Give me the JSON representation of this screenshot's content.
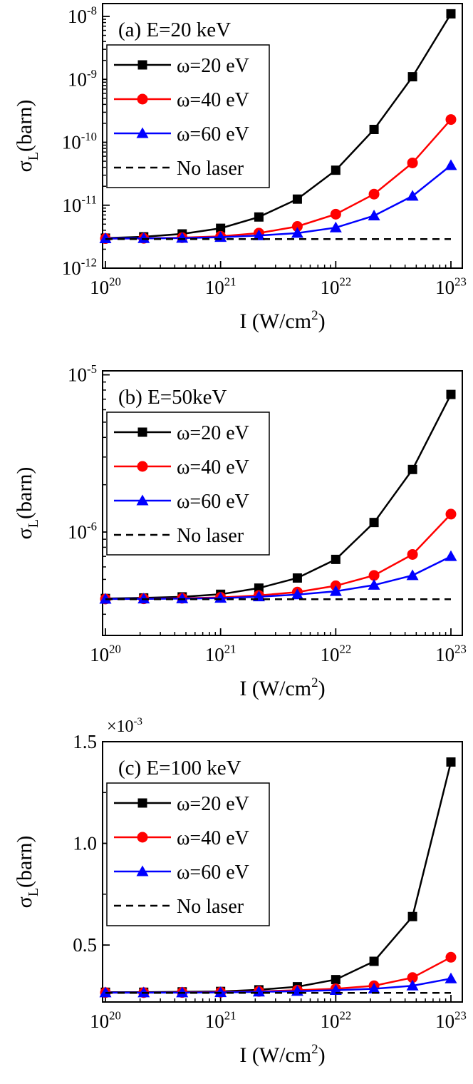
{
  "chart_data": [
    {
      "type": "line",
      "title": "(a) E=20 keV",
      "xlabel": "I (W/cm",
      "xlabel_sup": "2",
      "xlabel_end": ")",
      "ylabel": "σ",
      "ylabel_sub": "L",
      "ylabel_end": "(barn)",
      "xscale": "log",
      "yscale": "log",
      "xlim": [
        1e+20,
        1e+23
      ],
      "ylim": [
        1e-12,
        1.6e-08
      ],
      "x_ticks": [
        {
          "value": 1e+20,
          "base": "10",
          "exp": "20"
        },
        {
          "value": 1e+21,
          "base": "10",
          "exp": "21"
        },
        {
          "value": 1e+22,
          "base": "10",
          "exp": "22"
        },
        {
          "value": 1e+23,
          "base": "10",
          "exp": "23"
        }
      ],
      "y_ticks": [
        {
          "value": 1e-12,
          "base": "10",
          "exp": "-12"
        },
        {
          "value": 1e-11,
          "base": "10",
          "exp": "-11"
        },
        {
          "value": 1e-10,
          "base": "10",
          "exp": "-10"
        },
        {
          "value": 1e-09,
          "base": "10",
          "exp": "-9"
        },
        {
          "value": 1e-08,
          "base": "10",
          "exp": "-8"
        }
      ],
      "x": [
        1e+20,
        2.15e+20,
        4.64e+20,
        1e+21,
        2.15e+21,
        4.64e+21,
        1e+22,
        2.15e+22,
        4.64e+22,
        1e+23
      ],
      "series": [
        {
          "name": "ω=20 eV",
          "color": "#000000",
          "marker": "square",
          "values": [
            3e-12,
            3.15e-12,
            3.5e-12,
            4.3e-12,
            6.5e-12,
            1.25e-11,
            3.6e-11,
            1.6e-10,
            1.1e-09,
            1.1e-08
          ]
        },
        {
          "name": "ω=40 eV",
          "color": "#ff0000",
          "marker": "circle",
          "values": [
            2.95e-12,
            2.98e-12,
            3.05e-12,
            3.2e-12,
            3.6e-12,
            4.6e-12,
            7.2e-12,
            1.5e-11,
            4.7e-11,
            2.3e-10
          ]
        },
        {
          "name": "ω=60 eV",
          "color": "#0000ff",
          "marker": "triangle",
          "values": [
            2.95e-12,
            2.97e-12,
            3e-12,
            3.1e-12,
            3.3e-12,
            3.6e-12,
            4.4e-12,
            6.8e-12,
            1.4e-11,
            4.3e-11
          ]
        },
        {
          "name": "No laser",
          "color": "#000000",
          "marker": "none",
          "dash": true,
          "values": [
            2.9e-12,
            2.9e-12,
            2.9e-12,
            2.9e-12,
            2.9e-12,
            2.9e-12,
            2.9e-12,
            2.9e-12,
            2.9e-12,
            2.9e-12
          ]
        }
      ],
      "legend": "upper-left"
    },
    {
      "type": "line",
      "title": "(b) E=50keV",
      "xlabel": "I (W/cm",
      "xlabel_sup": "2",
      "xlabel_end": ")",
      "ylabel": "σ",
      "ylabel_sub": "L",
      "ylabel_end": "(barn)",
      "xscale": "log",
      "yscale": "log",
      "xlim": [
        1e+20,
        1e+23
      ],
      "ylim": [
        2.2e-07,
        1.06e-05
      ],
      "x_ticks": [
        {
          "value": 1e+20,
          "base": "10",
          "exp": "20"
        },
        {
          "value": 1e+21,
          "base": "10",
          "exp": "21"
        },
        {
          "value": 1e+22,
          "base": "10",
          "exp": "22"
        },
        {
          "value": 1e+23,
          "base": "10",
          "exp": "23"
        }
      ],
      "y_ticks": [
        {
          "value": 1e-06,
          "base": "10",
          "exp": "-6"
        },
        {
          "value": 1e-05,
          "base": "10",
          "exp": "-5"
        }
      ],
      "x": [
        1e+20,
        2.15e+20,
        4.64e+20,
        1e+21,
        2.15e+21,
        4.64e+21,
        1e+22,
        2.15e+22,
        4.64e+22,
        1e+23
      ],
      "series": [
        {
          "name": "ω=20 eV",
          "color": "#000000",
          "marker": "square",
          "values": [
            3.78e-07,
            3.81e-07,
            3.87e-07,
            4.02e-07,
            4.4e-07,
            5.1e-07,
            6.7e-07,
            1.15e-06,
            2.5e-06,
            7.5e-06
          ]
        },
        {
          "name": "ω=40 eV",
          "color": "#ff0000",
          "marker": "circle",
          "values": [
            3.75e-07,
            3.76e-07,
            3.79e-07,
            3.84e-07,
            3.95e-07,
            4.15e-07,
            4.55e-07,
            5.3e-07,
            7.2e-07,
            1.3e-06
          ]
        },
        {
          "name": "ω=60 eV",
          "color": "#0000ff",
          "marker": "triangle",
          "values": [
            3.75e-07,
            3.76e-07,
            3.77e-07,
            3.8e-07,
            3.88e-07,
            4e-07,
            4.2e-07,
            4.6e-07,
            5.3e-07,
            7e-07
          ]
        },
        {
          "name": "No laser",
          "color": "#000000",
          "marker": "none",
          "dash": true,
          "values": [
            3.74e-07,
            3.74e-07,
            3.74e-07,
            3.74e-07,
            3.74e-07,
            3.74e-07,
            3.74e-07,
            3.74e-07,
            3.74e-07,
            3.74e-07
          ]
        }
      ],
      "legend": "upper-left"
    },
    {
      "type": "line",
      "title": "(c) E=100 keV",
      "multiplier": "×10",
      "multiplier_exp": "-3",
      "xlabel": "I (W/cm",
      "xlabel_sup": "2",
      "xlabel_end": ")",
      "ylabel": "σ",
      "ylabel_sub": "L",
      "ylabel_end": "(barn)",
      "xscale": "log",
      "yscale": "linear",
      "xlim": [
        1e+20,
        1e+23
      ],
      "ylim": [
        0.22,
        1.5
      ],
      "x_ticks": [
        {
          "value": 1e+20,
          "base": "10",
          "exp": "20"
        },
        {
          "value": 1e+21,
          "base": "10",
          "exp": "21"
        },
        {
          "value": 1e+22,
          "base": "10",
          "exp": "22"
        },
        {
          "value": 1e+23,
          "base": "10",
          "exp": "23"
        }
      ],
      "y_ticks": [
        {
          "value": 0.5,
          "label": "0.5"
        },
        {
          "value": 1.0,
          "label": "1.0"
        },
        {
          "value": 1.5,
          "label": "1.5"
        }
      ],
      "x": [
        1e+20,
        2.15e+20,
        4.64e+20,
        1e+21,
        2.15e+21,
        4.64e+21,
        1e+22,
        2.15e+22,
        4.64e+22,
        1e+23
      ],
      "series": [
        {
          "name": "ω=20 eV",
          "color": "#000000",
          "marker": "square",
          "values": [
            0.268,
            0.268,
            0.27,
            0.272,
            0.28,
            0.295,
            0.33,
            0.42,
            0.64,
            1.4
          ]
        },
        {
          "name": "ω=40 eV",
          "color": "#ff0000",
          "marker": "circle",
          "values": [
            0.266,
            0.266,
            0.267,
            0.268,
            0.272,
            0.278,
            0.285,
            0.3,
            0.34,
            0.44
          ]
        },
        {
          "name": "ω=60 eV",
          "color": "#0000ff",
          "marker": "triangle",
          "values": [
            0.266,
            0.266,
            0.266,
            0.267,
            0.27,
            0.273,
            0.278,
            0.285,
            0.3,
            0.335
          ]
        },
        {
          "name": "No laser",
          "color": "#000000",
          "marker": "none",
          "dash": true,
          "values": [
            0.265,
            0.265,
            0.265,
            0.265,
            0.265,
            0.265,
            0.265,
            0.265,
            0.265,
            0.265
          ]
        }
      ],
      "legend": "upper-left"
    }
  ]
}
